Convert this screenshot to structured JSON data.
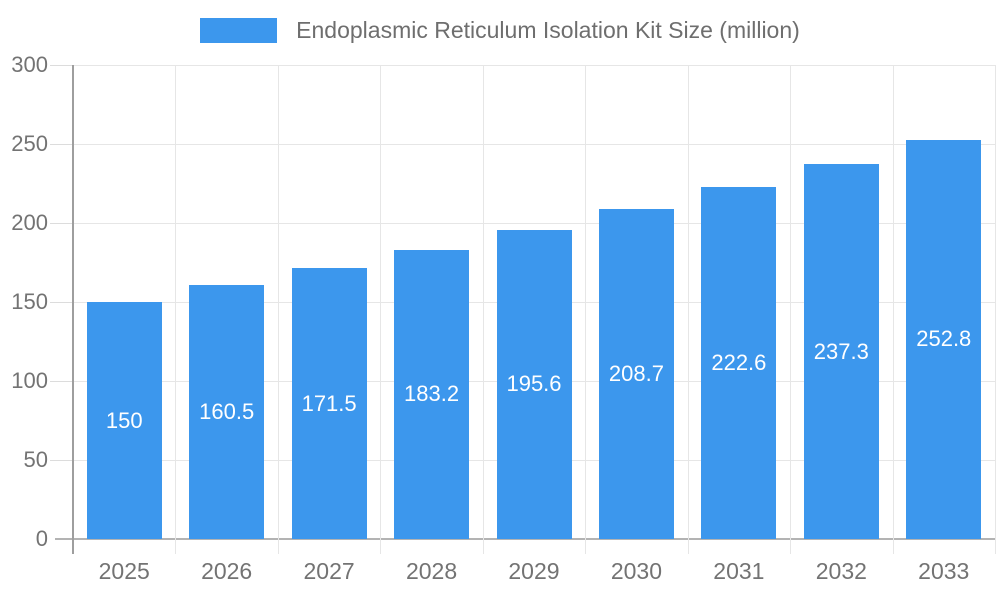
{
  "chart_data": {
    "type": "bar",
    "title": "Endoplasmic Reticulum Isolation Kit Size (million)",
    "categories": [
      "2025",
      "2026",
      "2027",
      "2028",
      "2029",
      "2030",
      "2031",
      "2032",
      "2033"
    ],
    "values": [
      150,
      160.5,
      171.5,
      183.2,
      195.6,
      208.7,
      222.6,
      237.3,
      252.8
    ],
    "value_labels": [
      "150",
      "160.5",
      "171.5",
      "183.2",
      "195.6",
      "208.7",
      "222.6",
      "237.3",
      "252.8"
    ],
    "series_name": "Endoplasmic Reticulum Isolation Kit Size (million)",
    "xlabel": "",
    "ylabel": "",
    "ylim": [
      0,
      300
    ],
    "yticks": [
      0,
      50,
      100,
      150,
      200,
      250,
      300
    ],
    "grid": true,
    "legend_position": "top-center",
    "colors": {
      "bar": "#3C97ED",
      "bar_label": "#FFFFFF",
      "axis_text": "#737373",
      "gridline": "#E6E6E6",
      "tick": "#DCDCDC",
      "axis_line": "#9E9E9E",
      "baseline": "#B3B3B3",
      "background": "#FFFFFF"
    }
  }
}
